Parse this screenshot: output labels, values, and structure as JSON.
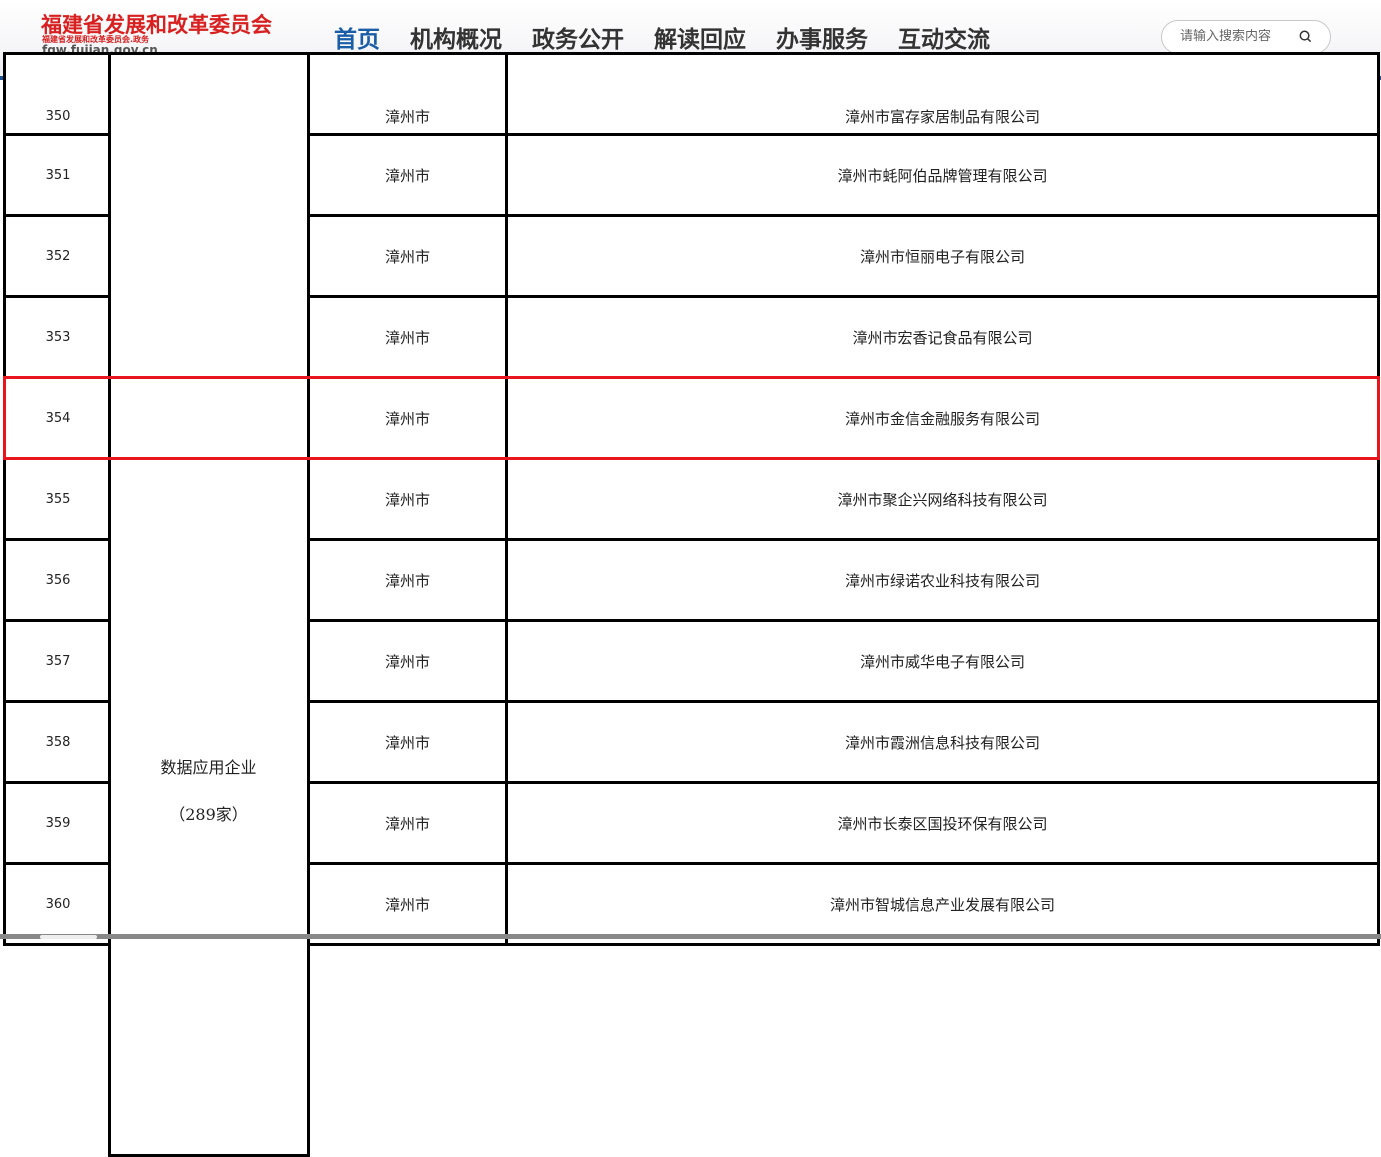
{
  "header": {
    "logo_title": "福建省发展和改革委员会",
    "logo_subtitle": "福建省发展和改革委员会.政务",
    "logo_url": "fgw.fujian.gov.cn",
    "nav": [
      {
        "label": "首页",
        "active": true
      },
      {
        "label": "机构概况"
      },
      {
        "label": "政务公开"
      },
      {
        "label": "解读回应"
      },
      {
        "label": "办事服务"
      },
      {
        "label": "互动交流"
      }
    ],
    "search_placeholder": "请输入搜索内容",
    "search_icon": "search-icon"
  },
  "table": {
    "highlight_color": "#e8141e",
    "category_label": "数据应用企业",
    "category_count": "（289家）",
    "rows": [
      {
        "no": "350",
        "city": "漳州市",
        "company": "漳州市富存家居制品有限公司"
      },
      {
        "no": "351",
        "city": "漳州市",
        "company": "漳州市蚝阿伯品牌管理有限公司"
      },
      {
        "no": "352",
        "city": "漳州市",
        "company": "漳州市恒丽电子有限公司"
      },
      {
        "no": "353",
        "city": "漳州市",
        "company": "漳州市宏香记食品有限公司"
      },
      {
        "no": "354",
        "city": "漳州市",
        "company": "漳州市金信金融服务有限公司",
        "highlighted": true
      },
      {
        "no": "355",
        "city": "漳州市",
        "company": "漳州市聚企兴网络科技有限公司"
      },
      {
        "no": "356",
        "city": "漳州市",
        "company": "漳州市绿诺农业科技有限公司"
      },
      {
        "no": "357",
        "city": "漳州市",
        "company": "漳州市威华电子有限公司"
      },
      {
        "no": "358",
        "city": "漳州市",
        "company": "漳州市霞洲信息科技有限公司"
      },
      {
        "no": "359",
        "city": "漳州市",
        "company": "漳州市长泰区国投环保有限公司"
      },
      {
        "no": "360",
        "city": "漳州市",
        "company": "漳州市智城信息产业发展有限公司"
      }
    ]
  }
}
